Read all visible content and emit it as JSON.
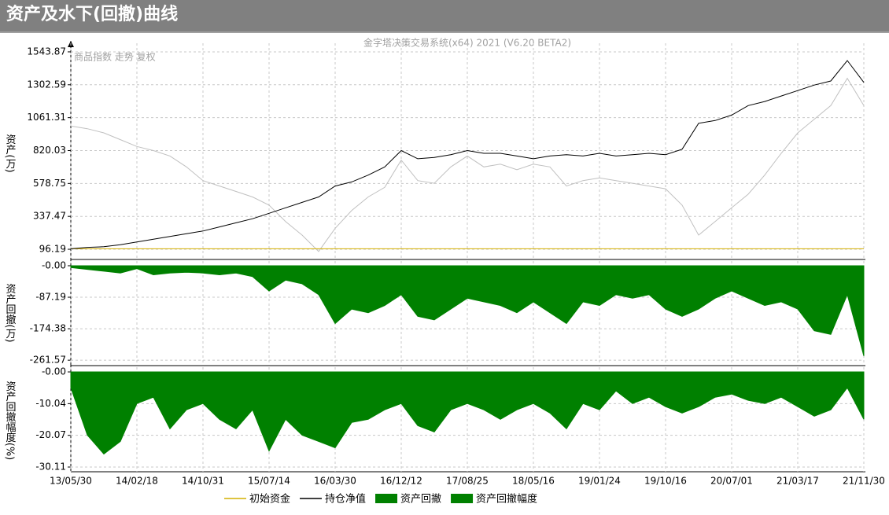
{
  "header": {
    "title": "资产及水下(回撤)曲线"
  },
  "chart_data": [
    {
      "type": "line",
      "subtitle": "金字塔决策交易系统(x64) 2021 (V6.20 BETA2)",
      "annotation": "商品指数 走势 复权",
      "y_label": "资产(万)",
      "ylim": [
        33,
        1607
      ],
      "yticks": [
        96.19,
        337.47,
        578.75,
        820.03,
        1061.31,
        1302.59,
        1543.87
      ],
      "grid": true,
      "series": [
        {
          "name": "初始资金",
          "color": "#d4b000",
          "values": [
            100,
            100,
            100,
            100,
            100,
            100,
            100,
            100,
            100,
            100,
            100,
            100,
            100,
            100,
            100,
            100,
            100,
            100,
            100,
            100,
            100,
            100,
            100,
            100,
            100,
            100,
            100,
            100,
            100,
            100,
            100,
            100,
            100,
            100,
            100,
            100,
            100,
            100,
            100,
            100,
            100,
            100,
            100,
            100,
            100,
            100,
            100,
            100,
            100
          ]
        },
        {
          "name": "持仓净值",
          "color": "#000000",
          "values": [
            100,
            110,
            115,
            130,
            150,
            170,
            190,
            210,
            230,
            260,
            290,
            320,
            360,
            400,
            440,
            480,
            560,
            590,
            640,
            700,
            820,
            760,
            770,
            790,
            820,
            800,
            800,
            780,
            760,
            780,
            790,
            780,
            800,
            780,
            790,
            800,
            790,
            830,
            1020,
            1040,
            1080,
            1150,
            1180,
            1220,
            1260,
            1300,
            1330,
            1480,
            1320
          ]
        },
        {
          "color": "#c0c0c0",
          "values": [
            1000,
            980,
            950,
            900,
            850,
            820,
            780,
            700,
            600,
            560,
            520,
            480,
            420,
            300,
            200,
            80,
            250,
            380,
            480,
            550,
            750,
            600,
            580,
            700,
            780,
            700,
            720,
            680,
            720,
            700,
            560,
            600,
            620,
            600,
            580,
            560,
            540,
            420,
            200,
            300,
            400,
            500,
            640,
            800,
            950,
            1050,
            1150,
            1350,
            1150
          ]
        }
      ]
    },
    {
      "type": "area",
      "y_label": "资产回撤(万)",
      "ylim": [
        -270,
        13
      ],
      "yticks": [
        {
          "value": 0,
          "label": "-0.00"
        },
        -87.19,
        -174.38,
        -261.57
      ],
      "grid": true,
      "series": [
        {
          "name": "资产回撤",
          "color": "#008000",
          "values": [
            -5,
            -10,
            -15,
            -20,
            -8,
            -25,
            -20,
            -18,
            -20,
            -25,
            -20,
            -30,
            -70,
            -40,
            -50,
            -80,
            -160,
            -120,
            -130,
            -110,
            -80,
            -140,
            -150,
            -120,
            -90,
            -100,
            -110,
            -130,
            -100,
            -130,
            -160,
            -100,
            -110,
            -80,
            -90,
            -80,
            -120,
            -140,
            -120,
            -90,
            -70,
            -90,
            -110,
            -100,
            -120,
            -180,
            -190,
            -80,
            -250
          ]
        }
      ]
    },
    {
      "type": "area",
      "y_label": "资产回撤幅度(%)",
      "ylim": [
        -31.6,
        1.5
      ],
      "yticks": [
        {
          "value": 0,
          "label": "-0.00"
        },
        -10.04,
        -20.07,
        -30.11
      ],
      "grid": true,
      "categories": [
        "13/05/30",
        null,
        null,
        null,
        "14/02/18",
        null,
        null,
        null,
        "14/10/31",
        null,
        null,
        null,
        "15/07/14",
        null,
        null,
        null,
        "16/03/30",
        null,
        null,
        null,
        "16/12/12",
        null,
        null,
        null,
        "17/08/25",
        null,
        null,
        null,
        "18/05/16",
        null,
        null,
        null,
        "19/01/24",
        null,
        null,
        null,
        "19/10/16",
        null,
        null,
        null,
        "20/07/01",
        null,
        null,
        null,
        "21/03/17",
        null,
        null,
        null,
        "21/11/30"
      ],
      "series": [
        {
          "name": "资产回撤幅度",
          "color": "#008000",
          "values": [
            -5,
            -20,
            -26,
            -22,
            -10,
            -8,
            -18,
            -12,
            -10,
            -15,
            -18,
            -12,
            -25,
            -15,
            -20,
            -22,
            -24,
            -16,
            -15,
            -12,
            -10,
            -17,
            -19,
            -12,
            -10,
            -12,
            -15,
            -12,
            -10,
            -13,
            -18,
            -10,
            -12,
            -6,
            -10,
            -8,
            -11,
            -13,
            -11,
            -8,
            -7,
            -9,
            -10,
            -8,
            -11,
            -14,
            -12,
            -5,
            -15
          ]
        }
      ]
    }
  ]
}
